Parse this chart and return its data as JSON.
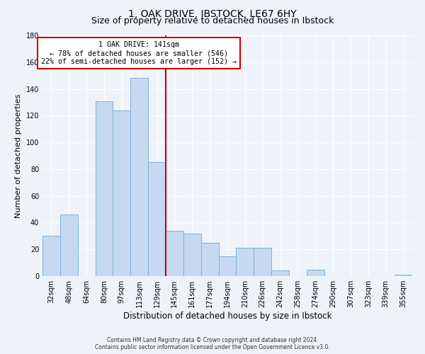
{
  "title": "1, OAK DRIVE, IBSTOCK, LE67 6HY",
  "subtitle": "Size of property relative to detached houses in Ibstock",
  "xlabel": "Distribution of detached houses by size in Ibstock",
  "ylabel": "Number of detached properties",
  "bar_labels": [
    "32sqm",
    "48sqm",
    "64sqm",
    "80sqm",
    "97sqm",
    "113sqm",
    "129sqm",
    "145sqm",
    "161sqm",
    "177sqm",
    "194sqm",
    "210sqm",
    "226sqm",
    "242sqm",
    "258sqm",
    "274sqm",
    "290sqm",
    "307sqm",
    "323sqm",
    "339sqm",
    "355sqm"
  ],
  "bar_values": [
    30,
    46,
    0,
    131,
    124,
    148,
    85,
    34,
    32,
    25,
    15,
    21,
    21,
    4,
    0,
    5,
    0,
    0,
    0,
    0,
    1
  ],
  "bar_color": "#c6d9f0",
  "bar_edge_color": "#7ab3d9",
  "vline_color": "#cc0000",
  "annotation_title": "1 OAK DRIVE: 141sqm",
  "annotation_line1": "← 78% of detached houses are smaller (546)",
  "annotation_line2": "22% of semi-detached houses are larger (152) →",
  "annotation_box_color": "#ffffff",
  "annotation_box_edge": "#cc0000",
  "ylim": [
    0,
    180
  ],
  "yticks": [
    0,
    20,
    40,
    60,
    80,
    100,
    120,
    140,
    160,
    180
  ],
  "footer_line1": "Contains HM Land Registry data © Crown copyright and database right 2024.",
  "footer_line2": "Contains public sector information licensed under the Open Government Licence v3.0.",
  "bg_color": "#eef3fb",
  "grid_color": "#ffffff",
  "title_fontsize": 10,
  "subtitle_fontsize": 9,
  "xlabel_fontsize": 8.5,
  "ylabel_fontsize": 8,
  "tick_fontsize": 7,
  "footer_fontsize": 5.5
}
